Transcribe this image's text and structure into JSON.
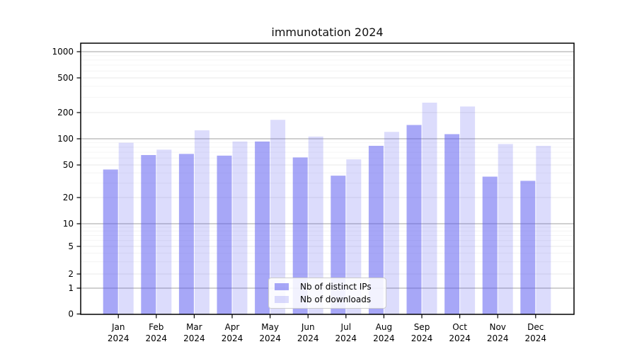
{
  "title": "immunotation 2024",
  "chart_data": {
    "type": "bar",
    "title": "immunotation 2024",
    "categories": [
      "Jan 2024",
      "Feb 2024",
      "Mar 2024",
      "Apr 2024",
      "May 2024",
      "Jun 2024",
      "Jul 2024",
      "Aug 2024",
      "Sep 2024",
      "Oct 2024",
      "Nov 2024",
      "Dec 2024"
    ],
    "series": [
      {
        "name": "Nb of distinct IPs",
        "color": "rgba(80,80,240,0.5)",
        "values": [
          44,
          65,
          67,
          64,
          93,
          61,
          37,
          83,
          144,
          113,
          36,
          32
        ]
      },
      {
        "name": "Nb of downloads",
        "color": "rgba(80,80,240,0.2)",
        "values": [
          90,
          75,
          125,
          93,
          165,
          106,
          58,
          120,
          260,
          235,
          87,
          83
        ]
      }
    ],
    "xlabel": "",
    "ylabel": "",
    "yscale": "symlog",
    "y_ticks": [
      0,
      1,
      2,
      5,
      10,
      20,
      50,
      100,
      200,
      500,
      1000
    ],
    "ylim": [
      0,
      1250
    ],
    "grid": true,
    "legend_position": "lower center"
  },
  "legend": {
    "items": [
      {
        "label": "Nb of distinct IPs"
      },
      {
        "label": "Nb of downloads"
      }
    ]
  },
  "colors": {
    "bar_dark": "rgba(80,80,240,0.5)",
    "bar_light": "rgba(80,80,240,0.2)",
    "grid_decade": "#a0a0a0",
    "grid_labeled": "#e9e9e9",
    "grid_minor": "#f4f4f4",
    "spine": "#000000"
  }
}
